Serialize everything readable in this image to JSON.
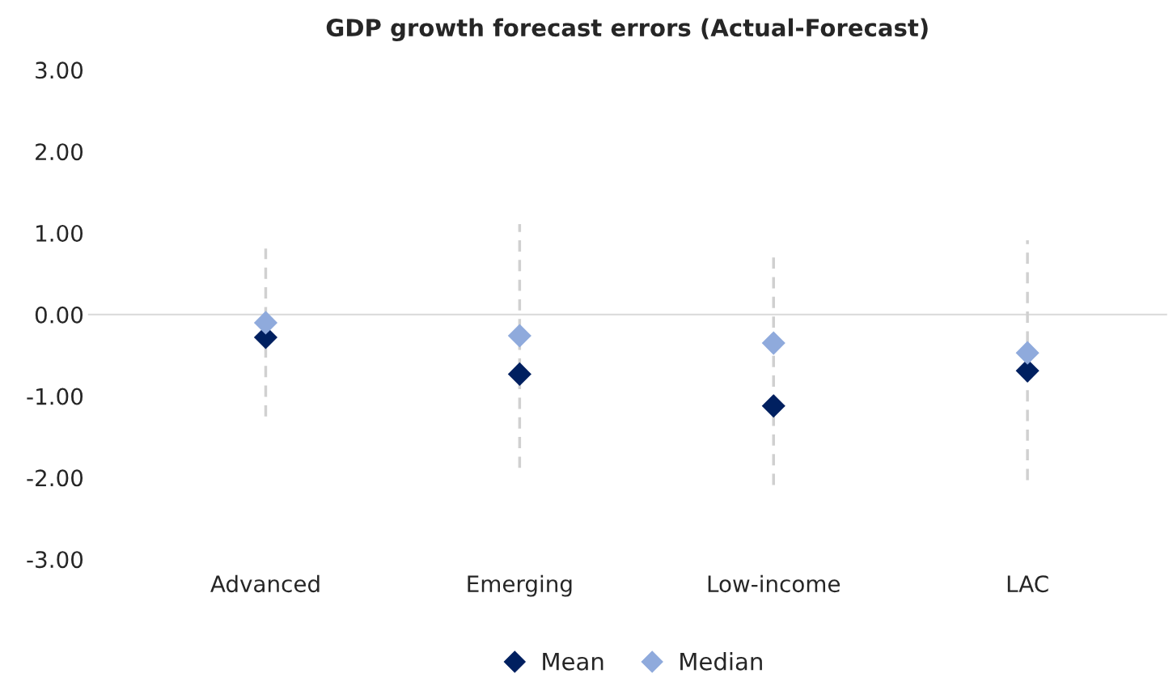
{
  "chart_data": {
    "type": "scatter",
    "title": "GDP growth forecast errors (Actual-Forecast)",
    "categories": [
      "Advanced",
      "Emerging",
      "Low-income",
      "LAC"
    ],
    "series": [
      {
        "name": "Mean",
        "color": "#002060",
        "values": [
          -0.28,
          -0.73,
          -1.12,
          -0.69
        ],
        "errors": [
          [
            -1.25,
            0.81
          ],
          [
            -1.88,
            1.11
          ],
          [
            -2.09,
            0.72
          ],
          [
            -2.03,
            0.91
          ]
        ]
      },
      {
        "name": "Median",
        "color": "#8faadc",
        "values": [
          -0.1,
          -0.26,
          -0.35,
          -0.47
        ]
      }
    ],
    "ylim": [
      -3,
      3
    ],
    "yticks": [
      {
        "value": -3,
        "label": "-3.00"
      },
      {
        "value": -2,
        "label": "-2.00"
      },
      {
        "value": -1,
        "label": "-1.00"
      },
      {
        "value": 0,
        "label": "0.00"
      },
      {
        "value": 1,
        "label": "1.00"
      },
      {
        "value": 2,
        "label": "2.00"
      },
      {
        "value": 3,
        "label": "3.00"
      }
    ],
    "ref_lines": [
      {
        "axis": "y",
        "value": 0,
        "color": "#d9d9d9"
      }
    ],
    "marker": "diamond",
    "legend": "bottom",
    "grid": false
  }
}
